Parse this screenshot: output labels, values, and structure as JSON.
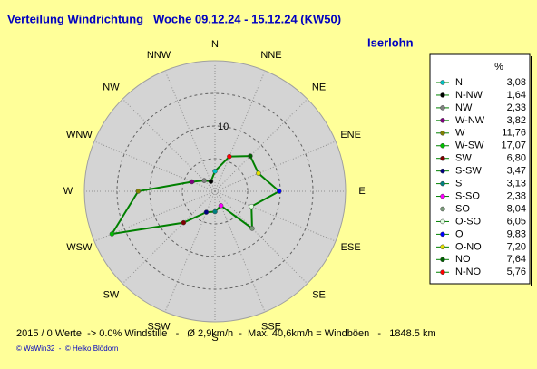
{
  "chart_data": {
    "type": "radar",
    "title": "Verteilung Windrichtung   Woche 09.12.24 - 15.12.24 (KW50)",
    "subtitle": "Iserlohn",
    "legend_header": "%",
    "directions": [
      "N",
      "NNE",
      "NE",
      "ENE",
      "E",
      "ESE",
      "SE",
      "SSE",
      "S",
      "SSW",
      "SW",
      "WSW",
      "W",
      "WNW",
      "NW",
      "NNW"
    ],
    "categories": [
      "N",
      "N-NW",
      "NW",
      "W-NW",
      "W",
      "W-SW",
      "SW",
      "S-SW",
      "S",
      "S-SO",
      "SO",
      "O-SO",
      "O",
      "O-NO",
      "NO",
      "N-NO"
    ],
    "values": [
      3.08,
      1.64,
      2.33,
      3.82,
      11.76,
      17.07,
      6.8,
      3.47,
      3.13,
      2.38,
      8.04,
      6.05,
      9.83,
      7.2,
      7.64,
      5.76
    ],
    "value_labels": [
      "3,08",
      "1,64",
      "2,33",
      "3,82",
      "11,76",
      "17,07",
      "6,80",
      "3,47",
      "3,13",
      "2,38",
      "8,04",
      "6,05",
      "9,83",
      "7,20",
      "7,64",
      "5,76"
    ],
    "colors": [
      "#00c0c0",
      "#000000",
      "#808080",
      "#800080",
      "#808000",
      "#00c000",
      "#800000",
      "#000080",
      "#008080",
      "#ff00ff",
      "#7a9a7a",
      "#e0ffe0",
      "#0000ff",
      "#e0e000",
      "#006000",
      "#ff0000"
    ],
    "line_color": "#008000",
    "rlim": [
      0,
      20
    ],
    "rgrid": [
      5,
      10,
      15
    ],
    "rticks": [
      10
    ],
    "footer": "2015 / 0 Werte  -> 0.0% Windstille   -   Ø 2,9km/h  -  Max. 40,6km/h = Windböen   -   1848.5 km",
    "credit": "© WsWin32  -  © Heiko Blödorn"
  }
}
